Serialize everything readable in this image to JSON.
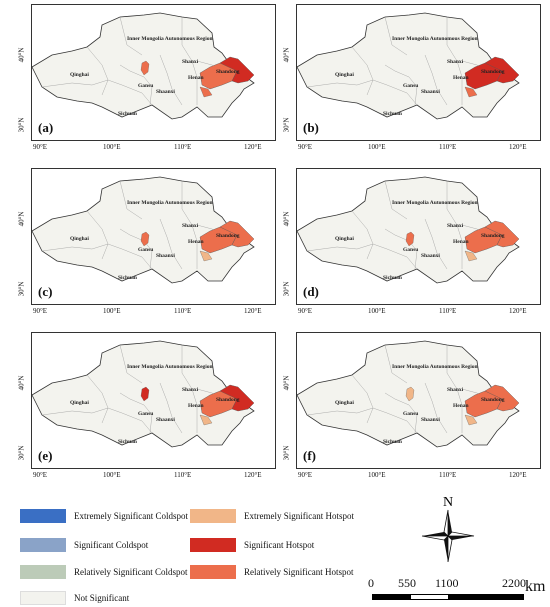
{
  "panels": [
    {
      "label": "(a)"
    },
    {
      "label": "(b)"
    },
    {
      "label": "(c)"
    },
    {
      "label": "(d)"
    },
    {
      "label": "(e)"
    },
    {
      "label": "(f)"
    }
  ],
  "regions": {
    "inner_mongolia": "Inner Mongolia Autonomous Region",
    "qinghai": "Qinghai",
    "gansu": "Gansu",
    "sichuan": "Sichuan",
    "shaanxi": "Shaanxi",
    "shanxi": "Shanxi",
    "henan": "Henan",
    "shandong": "Shandong"
  },
  "axes": {
    "lat": [
      "40°N",
      "30°N"
    ],
    "lon": [
      "90°E",
      "100°E",
      "110°E",
      "120°E"
    ]
  },
  "legend": [
    {
      "label": "Extremely Significant Coldspot",
      "color": "#3a6fc4"
    },
    {
      "label": "Significant Coldspot",
      "color": "#8aa3c8"
    },
    {
      "label": "Relatively Significant Coldspot",
      "color": "#bccbb8"
    },
    {
      "label": "Not Significant",
      "color": "#f3f3ee"
    },
    {
      "label": "Extremely Significant Hotspot",
      "color": "#f1b688"
    },
    {
      "label": "Significant Hotspot",
      "color": "#d12b22"
    },
    {
      "label": "Relatively Significant Hotspot",
      "color": "#ec6e4c"
    }
  ],
  "compass": {
    "north": "N"
  },
  "scale": {
    "ticks": [
      "0",
      "550",
      "1100",
      "2200"
    ],
    "unit": "km"
  }
}
